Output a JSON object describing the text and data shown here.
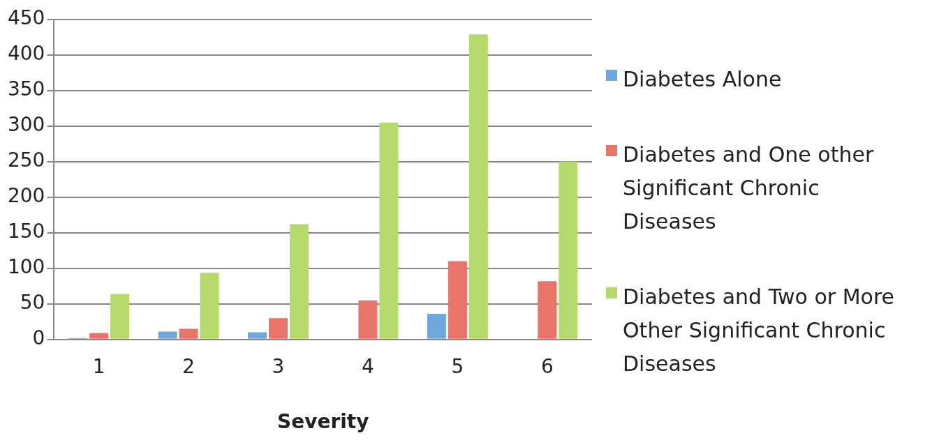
{
  "chart_data": {
    "type": "bar",
    "xlabel": "Severity",
    "categories": [
      "1",
      "2",
      "3",
      "4",
      "5",
      "6"
    ],
    "series": [
      {
        "name": "Diabetes Alone",
        "color": "#6fa8dc",
        "values": [
          2,
          11,
          10,
          0,
          36,
          0
        ]
      },
      {
        "name": "Diabetes and One other Significant Chronic Diseases",
        "color": "#e8746a",
        "values": [
          9,
          15,
          30,
          55,
          110,
          82
        ]
      },
      {
        "name": "Diabetes and Two or More Other Significant Chronic Diseases",
        "color": "#b5d96a",
        "values": [
          64,
          94,
          162,
          305,
          429,
          250
        ]
      }
    ],
    "ylim": [
      0,
      450
    ],
    "yticks": [
      0,
      50,
      100,
      150,
      200,
      250,
      300,
      350,
      400,
      450
    ],
    "grid": "y",
    "legend": "right"
  }
}
